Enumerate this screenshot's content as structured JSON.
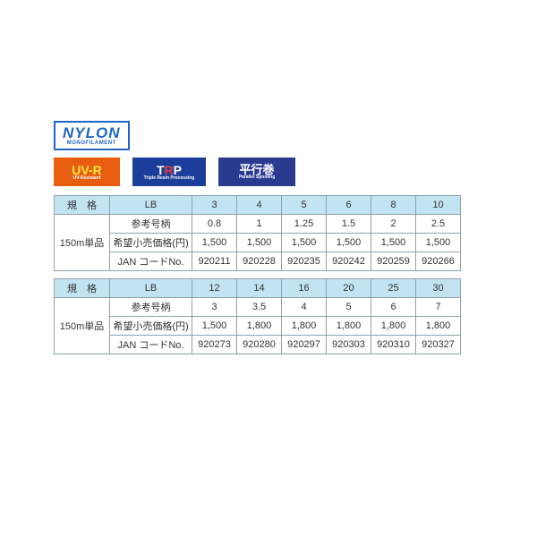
{
  "badges": {
    "nylon": {
      "main": "NYLON",
      "sub": "MONOFILAMENT"
    },
    "uvr": {
      "main": "UV-R",
      "sub": "UV-Resistant"
    },
    "trp": {
      "main_t": "T",
      "main_r": "R",
      "main_p": "P",
      "sub": "Triple Resin Processing"
    },
    "parallel": {
      "main": "平行巻",
      "sub": "Parallel Spooling"
    }
  },
  "table1": {
    "spec_header": "規　格",
    "lb_label": "LB",
    "row_group": "150m単品",
    "gou_label": "参考号柄",
    "price_label": "希望小売価格(円)",
    "jan_label": "JAN コードNo.",
    "lb": [
      "3",
      "4",
      "5",
      "6",
      "8",
      "10"
    ],
    "gou": [
      "0.8",
      "1",
      "1.25",
      "1.5",
      "2",
      "2.5"
    ],
    "price": [
      "1,500",
      "1,500",
      "1,500",
      "1,500",
      "1,500",
      "1,500"
    ],
    "jan": [
      "920211",
      "920228",
      "920235",
      "920242",
      "920259",
      "920266"
    ]
  },
  "table2": {
    "spec_header": "規　格",
    "lb_label": "LB",
    "row_group": "150m単品",
    "gou_label": "参考号柄",
    "price_label": "希望小売価格(円)",
    "jan_label": "JAN コードNo.",
    "lb": [
      "12",
      "14",
      "16",
      "20",
      "25",
      "30"
    ],
    "gou": [
      "3",
      "3.5",
      "4",
      "5",
      "6",
      "7"
    ],
    "price": [
      "1,500",
      "1,800",
      "1,800",
      "1,800",
      "1,800",
      "1,800"
    ],
    "jan": [
      "920273",
      "920280",
      "920297",
      "920303",
      "920310",
      "920327"
    ]
  },
  "style": {
    "header_bg": "#c2e3f2",
    "border_color": "#8fa0ad",
    "text_color": "#333333"
  }
}
